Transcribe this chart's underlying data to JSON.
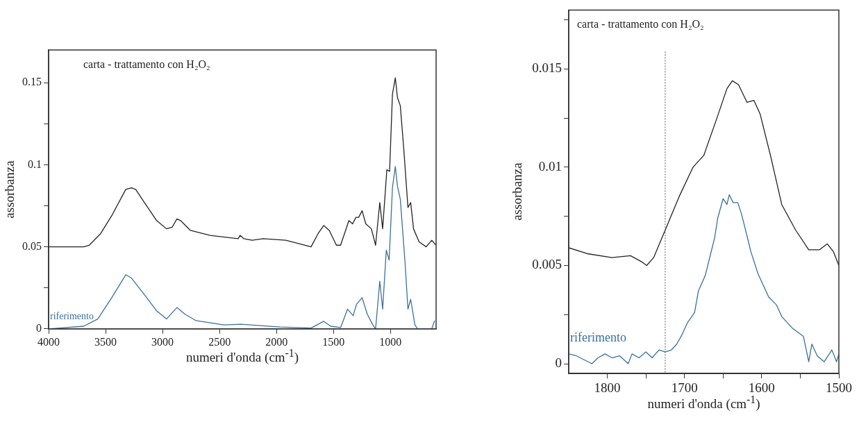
{
  "chart_data": [
    {
      "type": "line",
      "xlabel": "numeri d'onda (cm$^{-1}$)",
      "ylabel": "assorbanza",
      "annotations": [
        "carta - trattamento con H₂O₂"
      ],
      "xlim": [
        4000,
        600
      ],
      "xticks": [
        4000,
        3500,
        3000,
        2500,
        2000,
        1500,
        1000
      ],
      "ylim": [
        0,
        0.17
      ],
      "yticks": [
        0,
        {
          "value": 0.025,
          "label": null
        },
        0.05,
        {
          "value": 0.075,
          "label": null
        },
        0.1,
        {
          "value": 0.125,
          "label": null
        },
        0.15
      ],
      "grid": false,
      "legend": false,
      "marker": "none",
      "line_style": "solid",
      "series": [
        {
          "color": "#222222",
          "x": [
            4000,
            3692,
            3643,
            3544,
            3446,
            3323,
            3273,
            3236,
            3150,
            3052,
            2966,
            2916,
            2874,
            2842,
            2756,
            2584,
            2337,
            2320,
            2288,
            2214,
            2116,
            1919,
            1697,
            1636,
            1586,
            1537,
            1475,
            1438,
            1365,
            1333,
            1303,
            1279,
            1249,
            1217,
            1168,
            1131,
            1094,
            1069,
            1032,
            1008,
            983,
            958,
            939,
            914,
            884,
            847,
            823,
            798,
            749,
            687,
            638,
            601
          ],
          "values": [
            0.05,
            0.05,
            0.051,
            0.058,
            0.069,
            0.085,
            0.086,
            0.085,
            0.076,
            0.066,
            0.061,
            0.062,
            0.067,
            0.066,
            0.06,
            0.057,
            0.055,
            0.057,
            0.055,
            0.054,
            0.055,
            0.054,
            0.05,
            0.058,
            0.063,
            0.06,
            0.051,
            0.051,
            0.066,
            0.064,
            0.068,
            0.068,
            0.072,
            0.064,
            0.061,
            0.051,
            0.077,
            0.061,
            0.097,
            0.096,
            0.143,
            0.153,
            0.141,
            0.136,
            0.11,
            0.074,
            0.077,
            0.061,
            0.053,
            0.05,
            0.054,
            0.051
          ]
        },
        {
          "name": "riferimento",
          "color": "#3a6f9c",
          "x": [
            4000,
            3692,
            3569,
            3446,
            3323,
            3273,
            3150,
            3052,
            2966,
            2874,
            2805,
            2707,
            2461,
            2313,
            1968,
            1697,
            1586,
            1525,
            1438,
            1377,
            1328,
            1298,
            1249,
            1204,
            1155,
            1131,
            1094,
            1069,
            1037,
            1012,
            983,
            958,
            939,
            914,
            872,
            847,
            823,
            786,
            761,
            638,
            613
          ],
          "values": [
            0,
            0.0016,
            0.006,
            0.019,
            0.033,
            0.031,
            0.02,
            0.011,
            0.006,
            0.013,
            0.009,
            0.005,
            0.0024,
            0.0028,
            0.0011,
            0.0005,
            0.0046,
            0.0016,
            0.0008,
            0.012,
            0.008,
            0.015,
            0.019,
            0.009,
            0.0024,
            0,
            0.029,
            0.012,
            0.048,
            0.042,
            0.086,
            0.099,
            0.087,
            0.079,
            0.04,
            0.012,
            0.018,
            0.0024,
            0,
            0,
            0.005
          ]
        }
      ]
    },
    {
      "type": "line",
      "xlabel": "numeri d'onda (cm$^{-1}$)",
      "ylabel": "assorbanza",
      "annotations": [
        "carta - trattamento con H₂O₂"
      ],
      "xlim": [
        1850,
        1500
      ],
      "xticks": [
        1800,
        {
          "value": 1750,
          "label": null
        },
        1700,
        {
          "value": 1650,
          "label": null
        },
        1600,
        {
          "value": 1550,
          "label": null
        },
        1500
      ],
      "ylim": [
        -0.0005,
        0.018
      ],
      "yticks": [
        0,
        {
          "value": 0.0025,
          "label": null
        },
        0.005,
        {
          "value": 0.0075,
          "label": null
        },
        0.01,
        {
          "value": 0.0125,
          "label": null
        },
        0.015,
        {
          "value": 0.0175,
          "label": null
        }
      ],
      "grid": false,
      "legend": false,
      "marker": "none",
      "line_style": "solid",
      "ref_lines": [
        {
          "axis": "x",
          "value": 1725,
          "color": "#555555",
          "line_style": "dotted"
        }
      ],
      "series": [
        {
          "color": "#222222",
          "x": [
            1850,
            1826,
            1794,
            1770,
            1756,
            1749,
            1740,
            1725,
            1707,
            1689,
            1675,
            1658,
            1645,
            1638,
            1630,
            1619,
            1610,
            1602,
            1588,
            1574,
            1556,
            1539,
            1525,
            1515,
            1507,
            1500
          ],
          "values": [
            0.0059,
            0.0056,
            0.0054,
            0.0055,
            0.0052,
            0.005,
            0.0054,
            0.0068,
            0.0085,
            0.01,
            0.0106,
            0.0125,
            0.014,
            0.0144,
            0.0142,
            0.0133,
            0.0134,
            0.0127,
            0.0105,
            0.0081,
            0.0068,
            0.0058,
            0.0058,
            0.0061,
            0.0057,
            0.005
          ]
        },
        {
          "name": "riferimento",
          "color": "#3a6f9c",
          "x": [
            1850,
            1840,
            1820,
            1812,
            1803,
            1794,
            1784,
            1773,
            1768,
            1759,
            1750,
            1742,
            1733,
            1725,
            1717,
            1710,
            1703,
            1696,
            1687,
            1682,
            1673,
            1668,
            1661,
            1657,
            1650,
            1645,
            1642,
            1637,
            1631,
            1626,
            1619,
            1614,
            1605,
            1591,
            1581,
            1574,
            1560,
            1546,
            1539,
            1535,
            1528,
            1519,
            1509,
            1503,
            1500
          ],
          "values": [
            0.0005,
            0.0004,
            0,
            0.0003,
            0.0005,
            0.0003,
            0.0004,
            0,
            0.0005,
            0.0003,
            0.0006,
            0.0003,
            0.0007,
            0.0006,
            0.0007,
            0.001,
            0.0015,
            0.0021,
            0.0026,
            0.0037,
            0.0045,
            0.0053,
            0.0064,
            0.0074,
            0.0084,
            0.0081,
            0.0086,
            0.0082,
            0.0082,
            0.0076,
            0.0065,
            0.0057,
            0.0046,
            0.0034,
            0.003,
            0.0024,
            0.0018,
            0.0014,
            0.0001,
            0.001,
            0.0004,
            0.0001,
            0.0007,
            0.0001,
            0.0005
          ]
        }
      ]
    }
  ]
}
